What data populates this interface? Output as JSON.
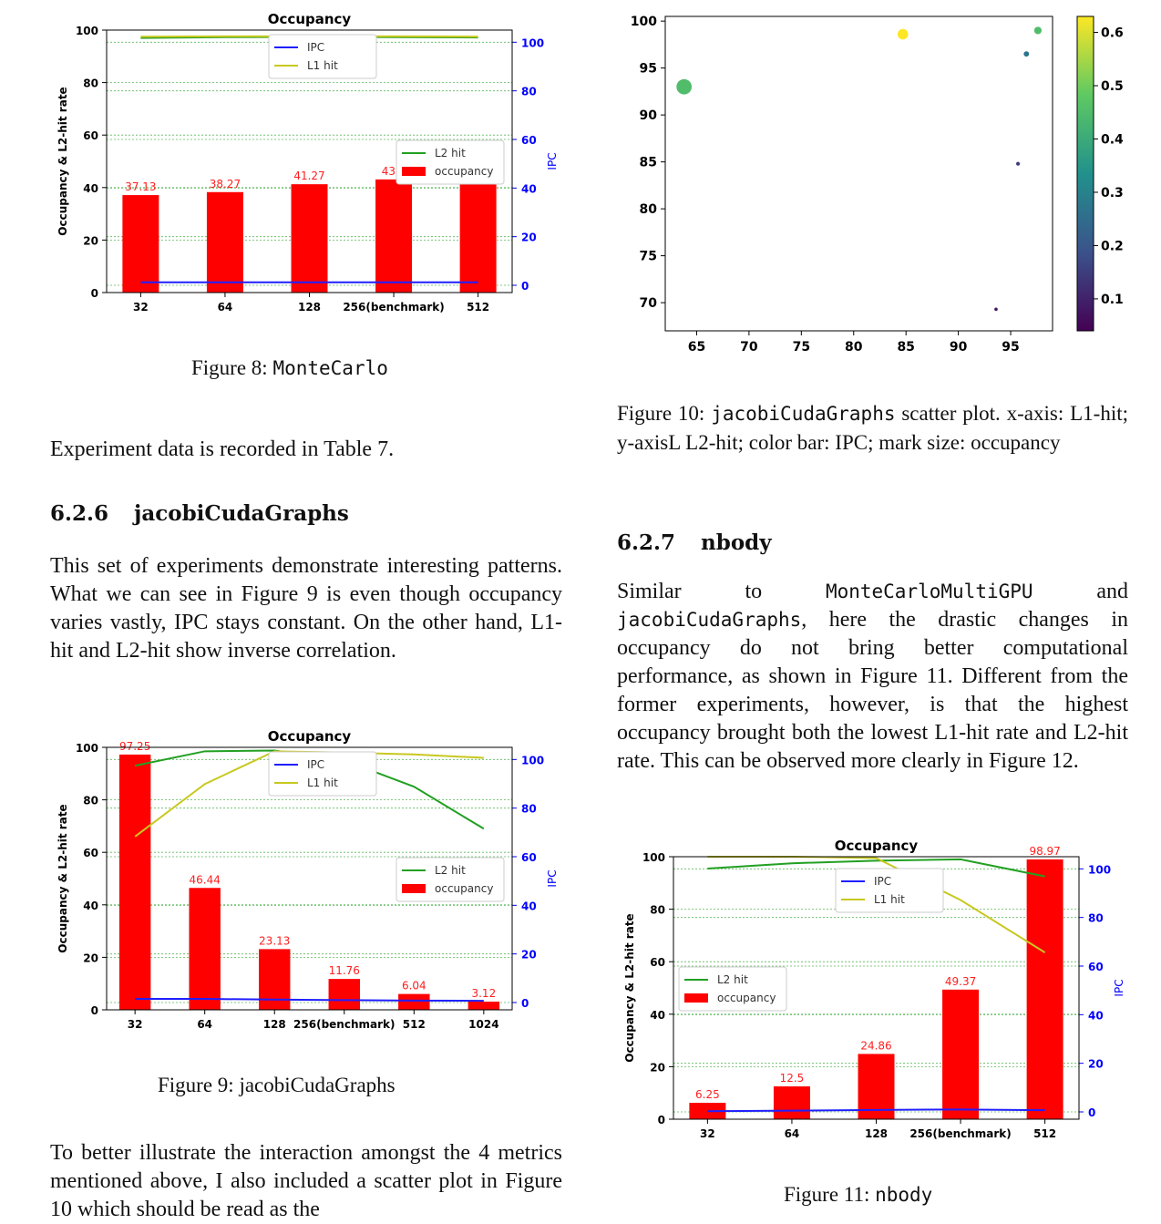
{
  "figure8": {
    "caption_prefix": "Figure 8: ",
    "caption_name": "MonteCarlo"
  },
  "para_after_fig8": "Experiment data is recorded in Table 7.",
  "section_626": {
    "number": "6.2.6",
    "title": "jacobiCudaGraphs"
  },
  "para_626": "This set of experiments demonstrate interesting patterns. What we can see in Figure 9 is even though occupancy varies vastly, IPC stays constant. On the other hand, L1-hit and L2-hit show inverse correlation.",
  "figure9": {
    "caption": "Figure 9: jacobiCudaGraphs"
  },
  "para_bottom_left": "To better illustrate the interaction amongst the 4 metrics mentioned above, I also included a scatter plot in Figure 10 which should be read as the",
  "figure10": {
    "caption_prefix": "Figure 10: ",
    "caption_name": "jacobiCudaGraphs",
    "caption_rest": " scatter plot. x-axis: L1-hit; y-axisL L2-hit; color bar: IPC; mark size: occupancy"
  },
  "section_627": {
    "number": "6.2.7",
    "title": "nbody"
  },
  "para_627_a": "Similar to ",
  "para_627_code1": "MonteCarloMultiGPU",
  "para_627_b": " and ",
  "para_627_code2": "jacobiCudaGraphs",
  "para_627_c": ", here the drastic changes in occupancy do not bring better computational performance, as shown in Figure 11. Different from the former experiments, however, is that the highest occupancy brought both the lowest L1-hit rate and L2-hit rate. This can be observed more clearly in Figure 12.",
  "figure11": {
    "caption_prefix": "Figure 11: ",
    "caption_name": "nbody"
  },
  "chart_data": [
    {
      "id": "fig8",
      "type": "bar",
      "title": "Occupancy",
      "ylabel": "Occupancy & L2-hit rate",
      "y2label": "IPC",
      "ylim": [
        0,
        100
      ],
      "y2lim": [
        -3,
        105
      ],
      "yticks": [
        "0",
        "20",
        "40",
        "60",
        "80",
        "100"
      ],
      "y2ticks": [
        "0",
        "20",
        "40",
        "60",
        "80",
        "100"
      ],
      "categories": [
        "32",
        "64",
        "128",
        "256(benchmark)",
        "512"
      ],
      "bar_series": {
        "name": "occupancy",
        "values": [
          37.13,
          38.27,
          41.27,
          43.1,
          43.1
        ],
        "labels": [
          "37.13",
          "38.27",
          "41.27",
          "43.1",
          ""
        ]
      },
      "lines": [
        {
          "name": "L2 hit",
          "color": "#22a022",
          "values": [
            97,
            97.3,
            97.4,
            97.3,
            97.2
          ]
        },
        {
          "name": "L1 hit",
          "color": "#c8c820",
          "values": [
            97.5,
            97.6,
            97.6,
            97.6,
            97.5
          ]
        },
        {
          "name": "IPC",
          "color": "#1f1fff",
          "axis": "y2",
          "values": [
            1.2,
            1.2,
            1.2,
            1.2,
            1.2
          ]
        }
      ],
      "legend_upper": [
        "IPC",
        "L1 hit"
      ],
      "legend_lower": [
        "L2 hit",
        "occupancy"
      ],
      "legend_placement": "upper-center / right",
      "grid": true
    },
    {
      "id": "fig9",
      "type": "bar",
      "title": "Occupancy",
      "ylabel": "Occupancy & L2-hit rate",
      "y2label": "IPC",
      "ylim": [
        0,
        100
      ],
      "y2lim": [
        -3,
        105
      ],
      "yticks": [
        "0",
        "20",
        "40",
        "60",
        "80",
        "100"
      ],
      "y2ticks": [
        "0",
        "20",
        "40",
        "60",
        "80",
        "100"
      ],
      "categories": [
        "32",
        "64",
        "128",
        "256(benchmark)",
        "512",
        "1024"
      ],
      "bar_series": {
        "name": "occupancy",
        "values": [
          97.25,
          46.44,
          23.13,
          11.76,
          6.04,
          3.12
        ],
        "labels": [
          "97.25",
          "46.44",
          "23.13",
          "11.76",
          "6.04",
          "3.12"
        ]
      },
      "lines": [
        {
          "name": "L2 hit",
          "color": "#22a022",
          "values": [
            93,
            98.5,
            98.8,
            95,
            85,
            69
          ]
        },
        {
          "name": "L1 hit",
          "color": "#c8c820",
          "values": [
            66,
            86,
            98.5,
            98,
            97.3,
            96
          ]
        },
        {
          "name": "IPC",
          "color": "#1f1fff",
          "axis": "y2",
          "values": [
            1.5,
            1.5,
            1.2,
            1,
            0.8,
            0.7
          ]
        }
      ],
      "legend_upper": [
        "IPC",
        "L1 hit"
      ],
      "legend_lower": [
        "L2 hit",
        "occupancy"
      ],
      "grid": true
    },
    {
      "id": "fig10",
      "type": "scatter",
      "xlim": [
        62,
        99
      ],
      "ylim": [
        67,
        100.5
      ],
      "xticks": [
        "65",
        "70",
        "75",
        "80",
        "85",
        "90",
        "95"
      ],
      "yticks": [
        "70",
        "75",
        "80",
        "85",
        "90",
        "95",
        "100"
      ],
      "colorbar_ticks": [
        "0.1",
        "0.2",
        "0.3",
        "0.4",
        "0.5",
        "0.6"
      ],
      "colorbar_range": [
        0.04,
        0.63
      ],
      "points": [
        {
          "x": 63.8,
          "y": 93,
          "ipc": 0.45,
          "occupancy": 97.25
        },
        {
          "x": 84.7,
          "y": 98.6,
          "ipc": 0.63,
          "occupancy": 46.44
        },
        {
          "x": 97.6,
          "y": 99,
          "ipc": 0.45,
          "occupancy": 23.13
        },
        {
          "x": 96.5,
          "y": 96.5,
          "ipc": 0.27,
          "occupancy": 11.76
        },
        {
          "x": 95.7,
          "y": 84.8,
          "ipc": 0.15,
          "occupancy": 6.04
        },
        {
          "x": 93.6,
          "y": 69.3,
          "ipc": 0.08,
          "occupancy": 3.12
        }
      ]
    },
    {
      "id": "fig11",
      "type": "bar",
      "title": "Occupancy",
      "ylabel": "Occupancy & L2-hit rate",
      "y2label": "IPC",
      "ylim": [
        0,
        100
      ],
      "y2lim": [
        -3,
        105
      ],
      "yticks": [
        "0",
        "20",
        "40",
        "60",
        "80",
        "100"
      ],
      "y2ticks": [
        "0",
        "20",
        "40",
        "60",
        "80",
        "100"
      ],
      "categories": [
        "32",
        "64",
        "128",
        "256(benchmark)",
        "512"
      ],
      "bar_series": {
        "name": "occupancy",
        "values": [
          6.25,
          12.5,
          24.86,
          49.37,
          98.97
        ],
        "labels": [
          "6.25",
          "12.5",
          "24.86",
          "49.37",
          "98.97"
        ]
      },
      "lines": [
        {
          "name": "L2 hit",
          "color": "#22a022",
          "values": [
            95.5,
            97.5,
            98.5,
            99,
            92.5
          ]
        },
        {
          "name": "L1 hit",
          "color": "#c8c820",
          "values": [
            100,
            100,
            99.5,
            83.5,
            63.5
          ]
        },
        {
          "name": "IPC",
          "color": "#1f1fff",
          "axis": "y2",
          "values": [
            0.3,
            0.5,
            0.8,
            1,
            0.7
          ]
        }
      ],
      "legend_upper": [
        "IPC",
        "L1 hit"
      ],
      "legend_lower": [
        "L2 hit",
        "occupancy"
      ],
      "grid": true
    }
  ]
}
